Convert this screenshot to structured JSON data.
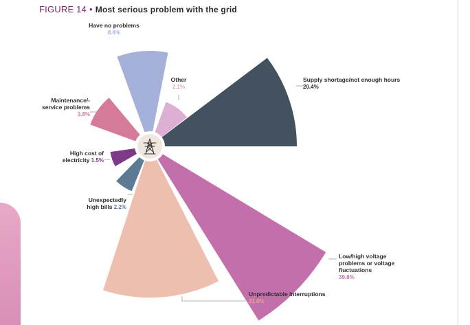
{
  "figure": {
    "number": "FIGURE 14",
    "separator": "•",
    "title": "Most serious problem with the grid"
  },
  "colors": {
    "title": "#7a2a6b",
    "hub": "#efe7e0",
    "leader": "#9a9a9a"
  },
  "chart_data": {
    "type": "polar-area",
    "title": "Most serious problem with the grid",
    "unit": "%",
    "center_icon": "power-pylon-icon",
    "slices": [
      {
        "label_lines": [
          "Supply shortage/not enough hours"
        ],
        "pct_text": "20.4%",
        "value": 20.4,
        "color": "#44525f",
        "pct_color": "#2e2e2e"
      },
      {
        "label_lines": [
          "Low/high voltage",
          "problems or voltage",
          "fluctuations"
        ],
        "pct_text": "39.8%",
        "value": 39.8,
        "color": "#c36fab",
        "pct_color": "#c36fab"
      },
      {
        "label_lines": [
          "Unpredictable interruptions"
        ],
        "pct_text": "21.6%",
        "value": 21.6,
        "color": "#eebfaf",
        "pct_color": "#e0a996"
      },
      {
        "label_lines": [
          "Unexpectedly",
          "high bills"
        ],
        "pct_text": "2.2%",
        "value": 2.2,
        "color": "#5d7a94",
        "pct_color": "#5d7a94"
      },
      {
        "label_lines": [
          "High cost of",
          "electricity"
        ],
        "pct_text": "1.5%",
        "value": 1.5,
        "color": "#7d3a86",
        "pct_color": "#7d3a86"
      },
      {
        "label_lines": [
          "Maintenance/-",
          "service problems"
        ],
        "pct_text": "3.8%",
        "value": 3.8,
        "color": "#d67a99",
        "pct_color": "#d67a99"
      },
      {
        "label_lines": [
          "Have no problems"
        ],
        "pct_text": "8.6%",
        "value": 8.6,
        "color": "#a6b1da",
        "pct_color": "#a6b1da"
      },
      {
        "label_lines": [
          "Other"
        ],
        "pct_text": "2.1%",
        "value": 2.1,
        "color": "#ddb0d3",
        "pct_color": "#d9a6cd"
      }
    ]
  }
}
